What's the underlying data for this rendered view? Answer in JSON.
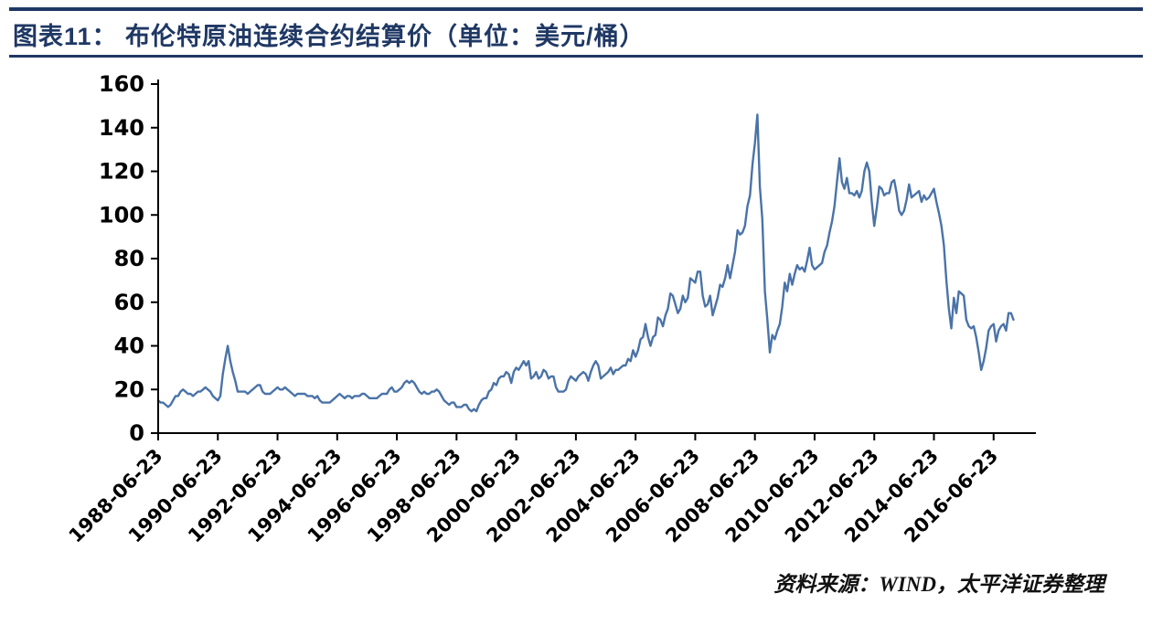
{
  "header": {
    "title": "图表11： 布伦特原油连续合约结算价（单位：美元/桶）"
  },
  "footer": {
    "source": "资料来源：WIND，太平洋证券整理"
  },
  "colors": {
    "accent_navy": "#1F3864",
    "line_series": "#4A73A8",
    "axis": "#000000"
  },
  "chart_data": {
    "type": "line",
    "title": "布伦特原油连续合约结算价",
    "unit": "美元/桶",
    "xlabel": "",
    "ylabel": "",
    "ylim": [
      0,
      160
    ],
    "y_ticks": [
      0,
      20,
      40,
      60,
      80,
      100,
      120,
      140,
      160
    ],
    "grid": false,
    "legend": "none",
    "series_name": "布伦特原油连续合约结算价",
    "x_start": "1988-06",
    "x_interval": "monthly",
    "x_tick_step": 24,
    "x_tick_labels": [
      "1988-06-23",
      "1990-06-23",
      "1992-06-23",
      "1994-06-23",
      "1996-06-23",
      "1998-06-23",
      "2000-06-23",
      "2002-06-23",
      "2004-06-23",
      "2006-06-23",
      "2008-06-23",
      "2010-06-23",
      "2012-06-23",
      "2014-06-23",
      "2016-06-23"
    ],
    "values": [
      15,
      14,
      14,
      13,
      12,
      13,
      15,
      17,
      17,
      19,
      20,
      19,
      18,
      18,
      17,
      18,
      19,
      19,
      20,
      21,
      20,
      19,
      17,
      16,
      15,
      17,
      27,
      34,
      40,
      33,
      28,
      24,
      19,
      19,
      19,
      19,
      18,
      19,
      20,
      21,
      22,
      22,
      19,
      18,
      18,
      18,
      19,
      20,
      21,
      20,
      20,
      21,
      20,
      19,
      18,
      17,
      18,
      18,
      18,
      18,
      17,
      17,
      17,
      16,
      17,
      15,
      14,
      14,
      14,
      14,
      15,
      16,
      17,
      18,
      17,
      16,
      17,
      17,
      16,
      17,
      17,
      17,
      18,
      18,
      17,
      16,
      16,
      16,
      16,
      17,
      18,
      18,
      18,
      20,
      21,
      19,
      19,
      20,
      21,
      23,
      24,
      23,
      24,
      23,
      21,
      19,
      18,
      19,
      18,
      18,
      19,
      19,
      20,
      19,
      17,
      15,
      14,
      13,
      14,
      14,
      12,
      12,
      12,
      13,
      13,
      11,
      10,
      11,
      10,
      13,
      15,
      16,
      16,
      19,
      20,
      23,
      22,
      25,
      26,
      26,
      28,
      27,
      23,
      28,
      30,
      29,
      31,
      33,
      31,
      33,
      25,
      26,
      28,
      25,
      26,
      29,
      28,
      25,
      26,
      26,
      21,
      19,
      19,
      19,
      20,
      24,
      26,
      25,
      24,
      26,
      27,
      28,
      27,
      24,
      28,
      31,
      33,
      31,
      25,
      26,
      27,
      28,
      30,
      27,
      29,
      29,
      30,
      31,
      31,
      34,
      33,
      38,
      35,
      38,
      43,
      44,
      50,
      44,
      40,
      44,
      45,
      53,
      52,
      49,
      54,
      57,
      64,
      63,
      59,
      55,
      57,
      63,
      60,
      62,
      71,
      70,
      69,
      74,
      74,
      63,
      58,
      59,
      63,
      54,
      58,
      62,
      68,
      67,
      71,
      77,
      71,
      77,
      83,
      93,
      91,
      92,
      95,
      104,
      109,
      123,
      133,
      146,
      113,
      98,
      65,
      52,
      37,
      45,
      43,
      47,
      50,
      58,
      69,
      65,
      73,
      68,
      73,
      77,
      75,
      76,
      74,
      79,
      85,
      77,
      75,
      76,
      77,
      78,
      83,
      86,
      92,
      97,
      104,
      115,
      126,
      115,
      112,
      117,
      110,
      110,
      109,
      111,
      108,
      111,
      120,
      124,
      120,
      106,
      95,
      103,
      113,
      112,
      109,
      110,
      110,
      115,
      116,
      110,
      102,
      100,
      102,
      107,
      114,
      108,
      109,
      110,
      111,
      106,
      109,
      107,
      108,
      110,
      112,
      106,
      101,
      95,
      86,
      70,
      57,
      48,
      62,
      55,
      65,
      64,
      63,
      52,
      49,
      48,
      49,
      44,
      37,
      29,
      33,
      39,
      47,
      49,
      50,
      42,
      47,
      49,
      50,
      47,
      55,
      55,
      52
    ]
  }
}
